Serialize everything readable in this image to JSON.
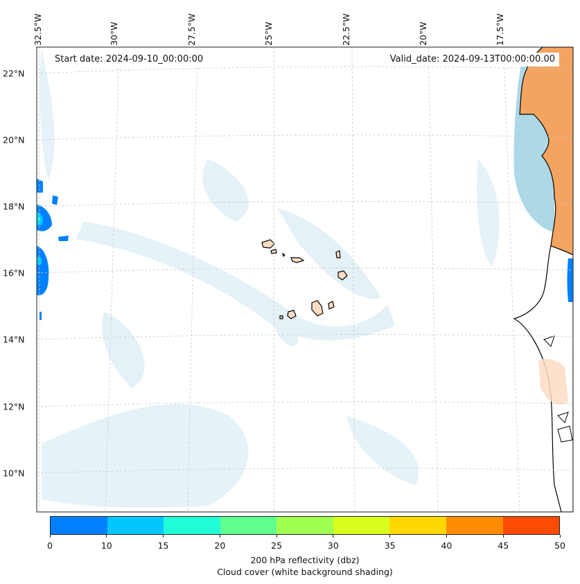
{
  "annotations": {
    "start_date": "Start date: 2024-09-10_00:00:00",
    "valid_date": "Valid_date: 2024-09-13T00:00:00.00"
  },
  "longitude_labels": [
    "32.5°W",
    "30°W",
    "27.5°W",
    "25°W",
    "22.5°W",
    "20°W",
    "17.5°W"
  ],
  "latitude_labels": [
    "22°N",
    "20°N",
    "18°N",
    "16°N",
    "14°N",
    "12°N",
    "10°N"
  ],
  "colorbar": {
    "ticks": [
      "0",
      "10",
      "15",
      "20",
      "25",
      "30",
      "35",
      "40",
      "45",
      "50"
    ],
    "colors": [
      "#0080ff",
      "#00c8ff",
      "#20ffd8",
      "#60ff90",
      "#a0ff50",
      "#d8ff20",
      "#ffd800",
      "#ff8c00",
      "#ff4c00"
    ],
    "label_line1": "200 hPa reflectivity (dbz)",
    "label_line2": "Cloud cover (white background shading)"
  },
  "colors": {
    "land_africa": "#f4a460",
    "land_islands": "#fddcc4",
    "cloud": "#d8ecf4",
    "cloud_dense": "#add8e6",
    "coastline": "#000000",
    "gridline": "#c8c8c8"
  }
}
